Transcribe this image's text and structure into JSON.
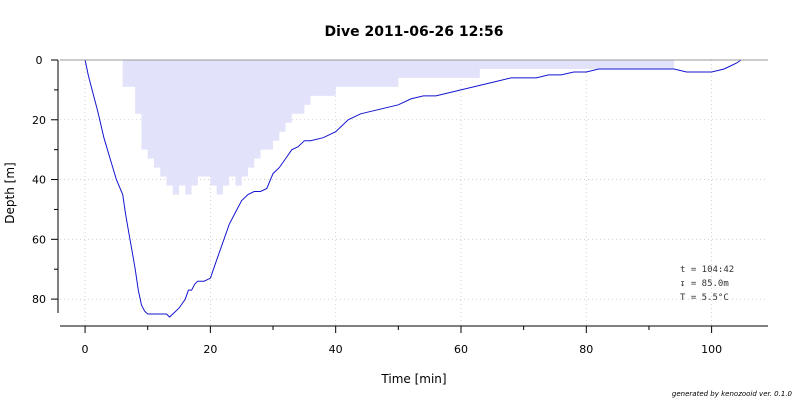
{
  "chart_data": {
    "type": "line",
    "title": "Dive 2011-06-26 12:56",
    "xlabel": "Time [min]",
    "ylabel": "Depth [m]",
    "xlim": [
      -4,
      109
    ],
    "ylim": [
      0,
      89
    ],
    "y_inverted": true,
    "grid": true,
    "x_ticks": [
      0,
      20,
      40,
      60,
      80,
      100
    ],
    "y_ticks": [
      0,
      20,
      40,
      60,
      80
    ],
    "colors": {
      "depth_line": "#1515d0",
      "deco_area": "#e2e2fb"
    },
    "series": [
      {
        "kind": "line",
        "x": [
          0,
          0.5,
          1,
          2,
          3,
          4,
          5,
          6,
          6.5,
          7,
          7.5,
          8,
          8.5,
          9,
          9.5,
          10,
          11,
          12,
          13,
          13.5,
          14,
          15,
          16,
          16.5,
          17,
          17.5,
          18,
          19,
          20,
          21,
          22,
          23,
          24,
          25,
          26,
          27,
          28,
          29,
          30,
          31,
          32,
          33,
          34,
          35,
          36,
          38,
          40,
          42,
          44,
          46,
          48,
          50,
          52,
          54,
          56,
          58,
          60,
          62,
          64,
          66,
          68,
          70,
          72,
          74,
          76,
          78,
          80,
          82,
          84,
          86,
          88,
          90,
          92,
          94,
          96,
          98,
          100,
          102,
          103,
          104,
          104.7
        ],
        "y": [
          0,
          5,
          9,
          17,
          26,
          33,
          40,
          45,
          52,
          58,
          64,
          70,
          77,
          82,
          84,
          85,
          85,
          85,
          85,
          86,
          85,
          83,
          80,
          77,
          77,
          75,
          74,
          74,
          73,
          67,
          61,
          55,
          51,
          47,
          45,
          44,
          44,
          43,
          38,
          36,
          33,
          30,
          29,
          27,
          27,
          26,
          24,
          20,
          18,
          17,
          16,
          15,
          13,
          12,
          12,
          11,
          10,
          9,
          8,
          7,
          6,
          6,
          6,
          5,
          5,
          4,
          4,
          3,
          3,
          3,
          3,
          3,
          3,
          3,
          4,
          4,
          4,
          3,
          2,
          1,
          0
        ]
      },
      {
        "kind": "area",
        "x": [
          6,
          8,
          8,
          9,
          9,
          10,
          10,
          11,
          11,
          12,
          12,
          13,
          13,
          14,
          14,
          15,
          15,
          16,
          16,
          17,
          17,
          18,
          18,
          20,
          20,
          21,
          21,
          22,
          22,
          23,
          23,
          24,
          24,
          25,
          25,
          26,
          26,
          27,
          27,
          28,
          28,
          30,
          30,
          31,
          31,
          32,
          32,
          33,
          33,
          35,
          35,
          36,
          36,
          38,
          38,
          40,
          40,
          42,
          42,
          48,
          48,
          50,
          50,
          54,
          54,
          57,
          57,
          60,
          60,
          63,
          63,
          66,
          66,
          70,
          70,
          74,
          74,
          80,
          80,
          94
        ],
        "y": [
          9,
          9,
          18,
          18,
          30,
          30,
          33,
          33,
          36,
          36,
          39,
          39,
          42,
          42,
          45,
          45,
          42,
          42,
          45,
          45,
          42,
          42,
          39,
          39,
          42,
          42,
          45,
          45,
          42,
          42,
          39,
          39,
          42,
          42,
          39,
          39,
          36,
          36,
          33,
          33,
          30,
          30,
          27,
          27,
          24,
          24,
          21,
          21,
          18,
          18,
          15,
          15,
          12,
          12,
          12,
          12,
          9,
          9,
          9,
          9,
          9,
          9,
          6,
          6,
          6,
          6,
          6,
          6,
          6,
          6,
          3,
          3,
          3,
          3,
          3,
          3,
          3,
          3,
          3,
          3
        ]
      }
    ],
    "annotations": [
      "t = 104:42",
      "↧ = 85.0m",
      "T = 5.5°C"
    ]
  },
  "footer": {
    "credit": "generated by kenozooid ver. 0.1.0"
  }
}
